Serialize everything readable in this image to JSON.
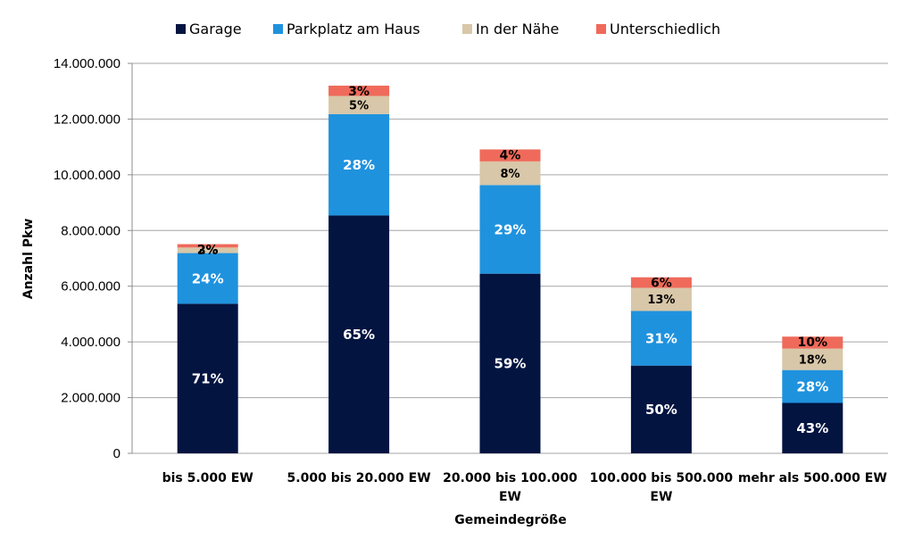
{
  "chart_data": {
    "type": "bar",
    "stacked": true,
    "xlabel": "Gemeindegröße",
    "ylabel": "Anzahl Pkw",
    "ylim": [
      0,
      14000000
    ],
    "yticks": [
      "0",
      "2.000.000",
      "4.000.000",
      "6.000.000",
      "8.000.000",
      "10.000.000",
      "12.000.000",
      "14.000.000"
    ],
    "ytick_values": [
      0,
      2000000,
      4000000,
      6000000,
      8000000,
      10000000,
      12000000,
      14000000
    ],
    "grid": true,
    "legend_position": "top-center",
    "categories": [
      [
        "bis 5.000 EW"
      ],
      [
        "5.000 bis 20.000 EW"
      ],
      [
        "20.000 bis 100.000",
        "EW"
      ],
      [
        "100.000 bis 500.000",
        "EW"
      ],
      [
        "mehr als 500.000 EW"
      ]
    ],
    "series": [
      {
        "name": "Garage",
        "color": "#031441",
        "label_color": "#ffffff",
        "values": [
          5370000,
          8540000,
          6450000,
          3150000,
          1810000
        ],
        "labels": [
          "71%",
          "65%",
          "59%",
          "50%",
          "43%"
        ]
      },
      {
        "name": "Parkplatz am Haus",
        "color": "#1f92de",
        "label_color": "#ffffff",
        "values": [
          1820000,
          3640000,
          3180000,
          1960000,
          1180000
        ],
        "labels": [
          "24%",
          "28%",
          "29%",
          "31%",
          "28%"
        ]
      },
      {
        "name": "In der Nähe",
        "color": "#d8c7a8",
        "label_color": "#000000",
        "values": [
          200000,
          650000,
          850000,
          830000,
          770000
        ],
        "labels": [
          "3%",
          "5%",
          "8%",
          "13%",
          "18%"
        ]
      },
      {
        "name": "Unterschiedlich",
        "color": "#ef6a5a",
        "label_color": "#000000",
        "values": [
          120000,
          370000,
          430000,
          380000,
          430000
        ],
        "labels": [
          "2%",
          "3%",
          "4%",
          "6%",
          "10%"
        ]
      }
    ]
  }
}
